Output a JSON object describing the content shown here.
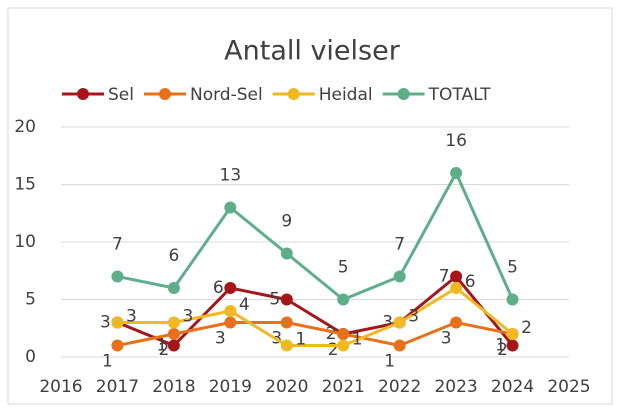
{
  "chart_data": {
    "type": "line",
    "title": "Antall vielser",
    "x": [
      2017,
      2018,
      2019,
      2020,
      2021,
      2022,
      2023,
      2024
    ],
    "series": [
      {
        "name": "Sel",
        "color": "#a5161a",
        "values": [
          3,
          1,
          6,
          5,
          2,
          3,
          7,
          1
        ]
      },
      {
        "name": "Nord-Sel",
        "color": "#e8701a",
        "values": [
          1,
          2,
          3,
          3,
          2,
          1,
          3,
          2
        ]
      },
      {
        "name": "Heidal",
        "color": "#f0b923",
        "values": [
          3,
          3,
          4,
          1,
          1,
          3,
          6,
          2
        ]
      },
      {
        "name": "TOTALT",
        "color": "#5fae8a",
        "values": [
          7,
          6,
          13,
          9,
          5,
          7,
          16,
          5
        ]
      }
    ],
    "xlim": [
      2016,
      2025
    ],
    "xticks": [
      2016,
      2017,
      2018,
      2019,
      2020,
      2021,
      2022,
      2023,
      2024,
      2025
    ],
    "ylim": [
      0,
      20
    ],
    "yticks": [
      0,
      5,
      10,
      15,
      20
    ],
    "grid": true,
    "legend": "top"
  }
}
